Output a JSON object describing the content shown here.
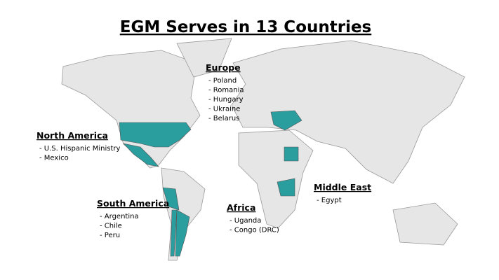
{
  "title": "EGM Serves in 13 Countries",
  "regions": [
    {
      "name": "Europe",
      "items": [
        "- Poland",
        "- Romania",
        "- Hungary",
        "- Ukraine",
        "- Belarus"
      ]
    },
    {
      "name": "North America",
      "items": [
        "- U.S. Hispanic Ministry",
        "- Mexico"
      ]
    },
    {
      "name": "South America",
      "items": [
        "- Argentina",
        "- Chile",
        "- Peru"
      ]
    },
    {
      "name": "Africa",
      "items": [
        "- Uganda",
        "- Congo (DRC)"
      ]
    },
    {
      "name": "Middle East",
      "items": [
        "- Egypt"
      ]
    }
  ]
}
